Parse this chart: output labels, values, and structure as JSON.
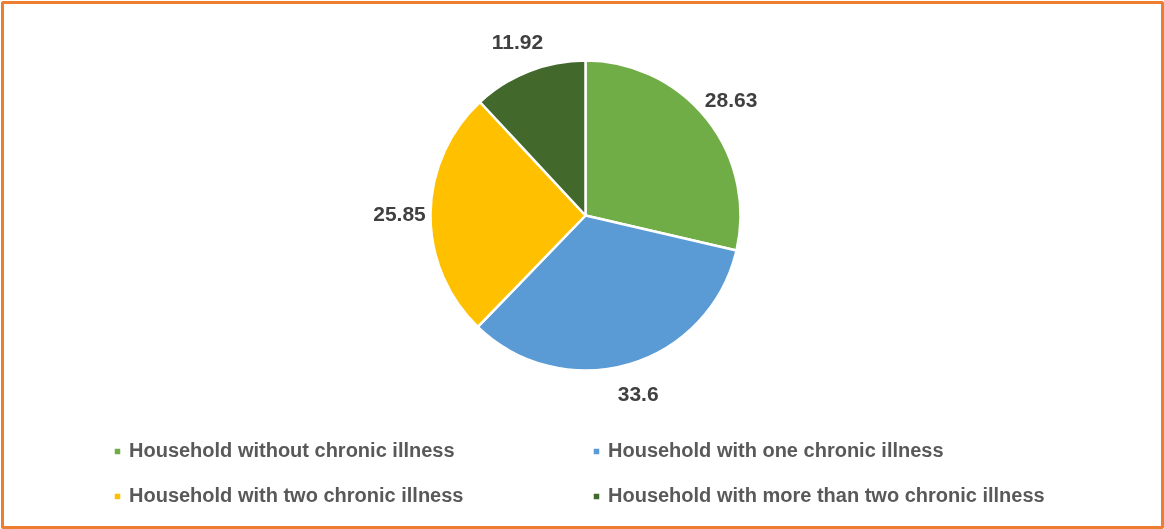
{
  "chart_data": {
    "type": "pie",
    "categories": [
      "Household without chronic illness",
      "Household with one chronic illness",
      "Household with two chronic illness",
      "Household with more than two chronic illness"
    ],
    "values": [
      28.63,
      33.6,
      25.85,
      11.92
    ],
    "colors": [
      "#70ad47",
      "#5b9bd5",
      "#ffc000",
      "#43682b"
    ],
    "data_labels": true,
    "legend": "bottom"
  }
}
